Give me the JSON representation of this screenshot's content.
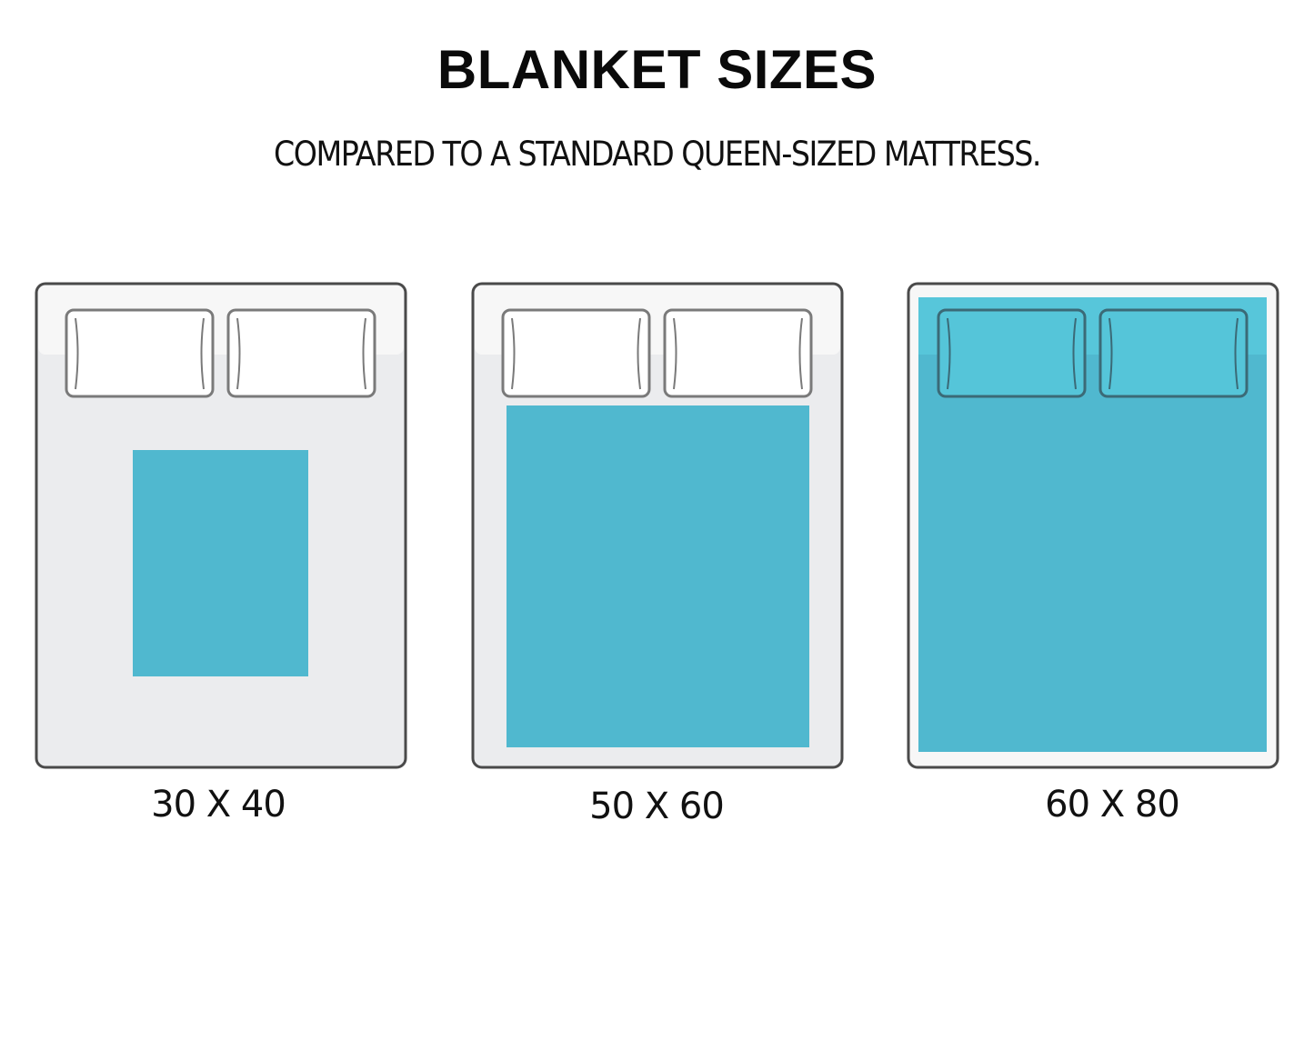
{
  "header": {
    "title": "BLANKET SIZES",
    "subtitle": "COMPARED TO A STANDARD QUEEN-SIZED MATTRESS."
  },
  "beds": [
    {
      "label": "30 X 40",
      "blanket_width_in": 30,
      "blanket_length_in": 40
    },
    {
      "label": "50 X 60",
      "blanket_width_in": 50,
      "blanket_length_in": 60
    },
    {
      "label": "60 X 80",
      "blanket_width_in": 60,
      "blanket_length_in": 80
    }
  ],
  "colors": {
    "blanket": "#50b8cf",
    "blanket_top": "#57c6da",
    "mattress": "#ebecee",
    "mattress_top": "#f7f7f7",
    "outline": "#4a4a4a"
  }
}
